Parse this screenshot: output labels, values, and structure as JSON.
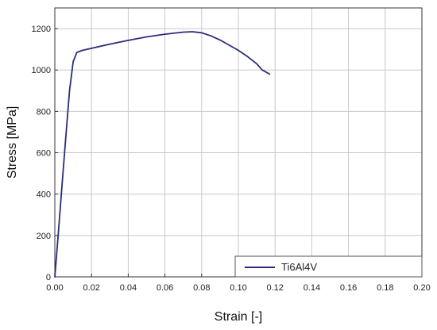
{
  "chart_data": {
    "type": "line",
    "title": "",
    "xlabel": "Strain [-]",
    "ylabel": "Stress [MPa]",
    "xlim": [
      0,
      0.2
    ],
    "ylim": [
      0,
      1300
    ],
    "x_ticks": [
      "0.00",
      "0.02",
      "0.04",
      "0.06",
      "0.08",
      "0.10",
      "0.12",
      "0.14",
      "0.16",
      "0.18",
      "0.20"
    ],
    "y_ticks": [
      "0",
      "200",
      "400",
      "600",
      "800",
      "1000",
      "1200"
    ],
    "grid": true,
    "legend_position": "bottom-right",
    "series": [
      {
        "name": "Ti6Al4V",
        "color": "#2b2d7a",
        "x": [
          0.0,
          0.002,
          0.004,
          0.006,
          0.008,
          0.01,
          0.012,
          0.015,
          0.02,
          0.03,
          0.04,
          0.05,
          0.06,
          0.07,
          0.075,
          0.08,
          0.085,
          0.09,
          0.095,
          0.1,
          0.105,
          0.11,
          0.113,
          0.117
        ],
        "y": [
          0,
          220,
          450,
          680,
          900,
          1040,
          1085,
          1095,
          1105,
          1125,
          1143,
          1160,
          1173,
          1183,
          1185,
          1180,
          1165,
          1145,
          1120,
          1095,
          1065,
          1030,
          1000,
          980
        ]
      }
    ]
  }
}
